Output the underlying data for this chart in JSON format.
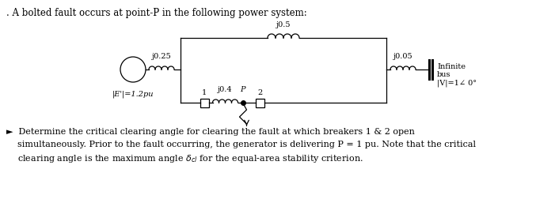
{
  "title_text": ". A bolted fault occurs at point-P in the following power system:",
  "bg_color": "#ffffff",
  "fig_width": 7.01,
  "fig_height": 2.52,
  "dpi": 100,
  "label_E": "|E'|=1.2pu",
  "label_j025": "j0.25",
  "label_j05": "j0.5",
  "label_j005": "j0.05",
  "label_j04": "j0.4",
  "label_P": "P",
  "label_1": "1",
  "label_2": "2",
  "label_inf_1": "Infinite",
  "label_inf_2": "bus",
  "label_inf_3": "|V|=1∠ 0°",
  "bullet_line1": "►  Determine the critical clearing angle for clearing the fault at which breakers 1 & 2 open",
  "bullet_line2": "    simultaneously. Prior to the fault occurring, the generator is delivering P = 1 pu. Note that the critical",
  "bullet_line3": "    clearing angle is the maximum angle δcl for the equal-area stability criterion."
}
